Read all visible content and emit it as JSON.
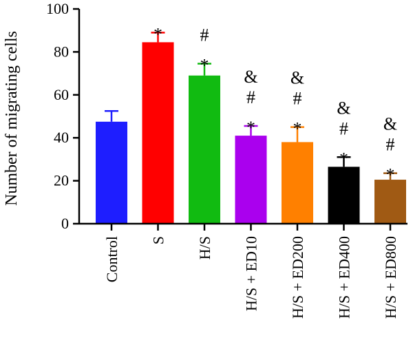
{
  "chart_data": {
    "type": "bar",
    "ylabel": "Number of migrating cells",
    "xlabel": "",
    "ylim": [
      0,
      100
    ],
    "yticks": [
      0,
      20,
      40,
      60,
      80,
      100
    ],
    "grid": false,
    "error_bars": "upper, one-sided",
    "categories": [
      "Control",
      "S",
      "H/S",
      "H/S + ED10",
      "H/S + ED200",
      "H/S + ED400",
      "H/S + ED800"
    ],
    "values": [
      47.5,
      84.5,
      69.0,
      41.0,
      38.0,
      26.5,
      20.5
    ],
    "errors": [
      5.0,
      4.5,
      5.5,
      4.5,
      7.0,
      4.5,
      3.0
    ],
    "colors": [
      "#1e1eff",
      "#ff0000",
      "#11bb11",
      "#aa00ee",
      "#ff8000",
      "#000000",
      "#a05a14"
    ],
    "annotations": [
      [],
      [
        "*"
      ],
      [
        "#",
        "*"
      ],
      [
        "&",
        "#",
        "*"
      ],
      [
        "&",
        "#",
        "*"
      ],
      [
        "&",
        "#",
        "*"
      ],
      [
        "&",
        "#",
        "*"
      ]
    ]
  }
}
